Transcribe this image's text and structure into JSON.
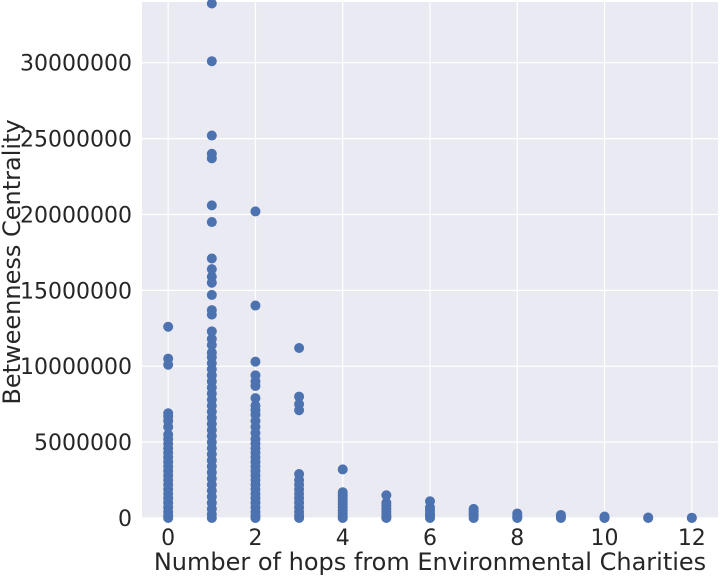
{
  "chart_data": {
    "type": "scatter",
    "title": "",
    "xlabel": "Number of hops from Environmental Charities",
    "ylabel": "Betweenness Centrality",
    "xlim": [
      -0.6,
      12.6
    ],
    "ylim": [
      0,
      34000000
    ],
    "xticks": [
      0,
      2,
      4,
      6,
      8,
      10,
      12
    ],
    "xtick_labels": [
      "0",
      "2",
      "4",
      "6",
      "8",
      "10",
      "12"
    ],
    "yticks": [
      0,
      5000000,
      10000000,
      15000000,
      20000000,
      25000000,
      30000000
    ],
    "ytick_labels": [
      "0",
      "5000000",
      "10000000",
      "15000000",
      "20000000",
      "25000000",
      "30000000"
    ],
    "grid": true,
    "background": "#eaeaf2",
    "marker_color": "#4c72b0",
    "series": [
      {
        "points": [
          [
            0,
            12600000
          ],
          [
            0,
            10500000
          ],
          [
            0,
            10100000
          ],
          [
            0,
            6900000
          ],
          [
            0,
            6700000
          ],
          [
            0,
            6400000
          ],
          [
            0,
            6000000
          ],
          [
            0,
            5500000
          ],
          [
            0,
            5200000
          ],
          [
            0,
            4900000
          ],
          [
            0,
            4600000
          ],
          [
            0,
            4300000
          ],
          [
            0,
            4000000
          ],
          [
            0,
            3700000
          ],
          [
            0,
            3400000
          ],
          [
            0,
            3100000
          ],
          [
            0,
            2800000
          ],
          [
            0,
            2500000
          ],
          [
            0,
            2200000
          ],
          [
            0,
            1900000
          ],
          [
            0,
            1600000
          ],
          [
            0,
            1300000
          ],
          [
            0,
            1000000
          ],
          [
            0,
            700000
          ],
          [
            0,
            400000
          ],
          [
            0,
            150000
          ],
          [
            0,
            0
          ],
          [
            1,
            33900000
          ],
          [
            1,
            30100000
          ],
          [
            1,
            25200000
          ],
          [
            1,
            24000000
          ],
          [
            1,
            23700000
          ],
          [
            1,
            20600000
          ],
          [
            1,
            19500000
          ],
          [
            1,
            17100000
          ],
          [
            1,
            16400000
          ],
          [
            1,
            15900000
          ],
          [
            1,
            15500000
          ],
          [
            1,
            14700000
          ],
          [
            1,
            13700000
          ],
          [
            1,
            13400000
          ],
          [
            1,
            12300000
          ],
          [
            1,
            11800000
          ],
          [
            1,
            11400000
          ],
          [
            1,
            10900000
          ],
          [
            1,
            10600000
          ],
          [
            1,
            10200000
          ],
          [
            1,
            9800000
          ],
          [
            1,
            9400000
          ],
          [
            1,
            9000000
          ],
          [
            1,
            8600000
          ],
          [
            1,
            8200000
          ],
          [
            1,
            7800000
          ],
          [
            1,
            7400000
          ],
          [
            1,
            7000000
          ],
          [
            1,
            6600000
          ],
          [
            1,
            6200000
          ],
          [
            1,
            5800000
          ],
          [
            1,
            5400000
          ],
          [
            1,
            5000000
          ],
          [
            1,
            4600000
          ],
          [
            1,
            4200000
          ],
          [
            1,
            3800000
          ],
          [
            1,
            3400000
          ],
          [
            1,
            3000000
          ],
          [
            1,
            2600000
          ],
          [
            1,
            2200000
          ],
          [
            1,
            1800000
          ],
          [
            1,
            1400000
          ],
          [
            1,
            1000000
          ],
          [
            1,
            600000
          ],
          [
            1,
            250000
          ],
          [
            1,
            0
          ],
          [
            2,
            20200000
          ],
          [
            2,
            14000000
          ],
          [
            2,
            10300000
          ],
          [
            2,
            9400000
          ],
          [
            2,
            9000000
          ],
          [
            2,
            8700000
          ],
          [
            2,
            7900000
          ],
          [
            2,
            7400000
          ],
          [
            2,
            7100000
          ],
          [
            2,
            6800000
          ],
          [
            2,
            6400000
          ],
          [
            2,
            6000000
          ],
          [
            2,
            5600000
          ],
          [
            2,
            5200000
          ],
          [
            2,
            4900000
          ],
          [
            2,
            4600000
          ],
          [
            2,
            4300000
          ],
          [
            2,
            4000000
          ],
          [
            2,
            3700000
          ],
          [
            2,
            3400000
          ],
          [
            2,
            3100000
          ],
          [
            2,
            2800000
          ],
          [
            2,
            2500000
          ],
          [
            2,
            2200000
          ],
          [
            2,
            1900000
          ],
          [
            2,
            1600000
          ],
          [
            2,
            1300000
          ],
          [
            2,
            1000000
          ],
          [
            2,
            700000
          ],
          [
            2,
            400000
          ],
          [
            2,
            150000
          ],
          [
            2,
            0
          ],
          [
            3,
            11200000
          ],
          [
            3,
            8000000
          ],
          [
            3,
            7500000
          ],
          [
            3,
            7100000
          ],
          [
            3,
            2900000
          ],
          [
            3,
            2500000
          ],
          [
            3,
            2200000
          ],
          [
            3,
            1900000
          ],
          [
            3,
            1600000
          ],
          [
            3,
            1300000
          ],
          [
            3,
            1000000
          ],
          [
            3,
            700000
          ],
          [
            3,
            400000
          ],
          [
            3,
            150000
          ],
          [
            3,
            0
          ],
          [
            4,
            3200000
          ],
          [
            4,
            1700000
          ],
          [
            4,
            1500000
          ],
          [
            4,
            1300000
          ],
          [
            4,
            1100000
          ],
          [
            4,
            900000
          ],
          [
            4,
            700000
          ],
          [
            4,
            500000
          ],
          [
            4,
            300000
          ],
          [
            4,
            100000
          ],
          [
            4,
            0
          ],
          [
            5,
            1500000
          ],
          [
            5,
            1000000
          ],
          [
            5,
            800000
          ],
          [
            5,
            600000
          ],
          [
            5,
            400000
          ],
          [
            5,
            200000
          ],
          [
            5,
            50000
          ],
          [
            5,
            0
          ],
          [
            6,
            1100000
          ],
          [
            6,
            700000
          ],
          [
            6,
            500000
          ],
          [
            6,
            300000
          ],
          [
            6,
            150000
          ],
          [
            6,
            0
          ],
          [
            7,
            600000
          ],
          [
            7,
            450000
          ],
          [
            7,
            300000
          ],
          [
            7,
            150000
          ],
          [
            7,
            0
          ],
          [
            8,
            300000
          ],
          [
            8,
            150000
          ],
          [
            8,
            50000
          ],
          [
            8,
            0
          ],
          [
            9,
            200000
          ],
          [
            9,
            80000
          ],
          [
            9,
            0
          ],
          [
            10,
            100000
          ],
          [
            10,
            20000
          ],
          [
            10,
            0
          ],
          [
            11,
            30000
          ],
          [
            11,
            0
          ],
          [
            12,
            20000
          ],
          [
            12,
            0
          ]
        ]
      }
    ]
  }
}
